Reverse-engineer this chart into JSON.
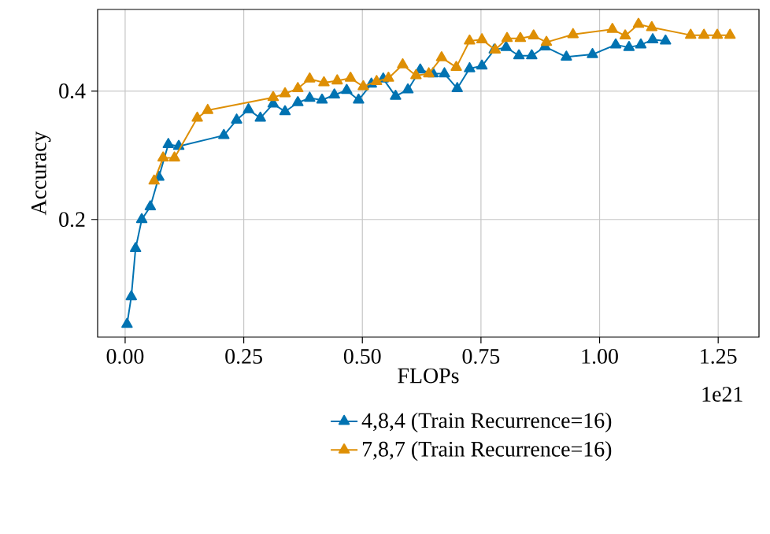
{
  "chart_data": {
    "type": "line",
    "xlabel": "FLOPs",
    "ylabel": "Accuracy",
    "annotations": [
      "1e21"
    ],
    "xlim": [
      -0.058,
      1.336
    ],
    "ylim": [
      0.017,
      0.527
    ],
    "xticks": [
      {
        "value": 0,
        "label": "0.00"
      },
      {
        "value": 0.25,
        "label": "0.25"
      },
      {
        "value": 0.5,
        "label": "0.50"
      },
      {
        "value": 0.75,
        "label": "0.75"
      },
      {
        "value": 1.0,
        "label": "1.00"
      },
      {
        "value": 1.25,
        "label": "1.25"
      }
    ],
    "yticks": [
      0.2,
      0.4
    ],
    "grid": true,
    "legend": "bottom",
    "marker": "triangle",
    "line_style": "solid",
    "series": [
      {
        "name": "4,8,4 (Train Recurrence=16)",
        "color": "#0173b2",
        "x": [
          0.004,
          0.013,
          0.022,
          0.035,
          0.053,
          0.071,
          0.091,
          0.113,
          0.208,
          0.235,
          0.26,
          0.285,
          0.312,
          0.337,
          0.364,
          0.389,
          0.415,
          0.441,
          0.467,
          0.492,
          0.519,
          0.544,
          0.57,
          0.596,
          0.622,
          0.649,
          0.673,
          0.7,
          0.726,
          0.752,
          0.778,
          0.803,
          0.83,
          0.857,
          0.885,
          0.93,
          0.985,
          1.034,
          1.062,
          1.087,
          1.112,
          1.139
        ],
        "values": [
          0.037,
          0.08,
          0.155,
          0.2,
          0.22,
          0.266,
          0.317,
          0.314,
          0.331,
          0.355,
          0.371,
          0.358,
          0.38,
          0.368,
          0.382,
          0.389,
          0.386,
          0.394,
          0.401,
          0.386,
          0.411,
          0.419,
          0.392,
          0.402,
          0.433,
          0.427,
          0.427,
          0.404,
          0.435,
          0.439,
          0.464,
          0.468,
          0.455,
          0.455,
          0.469,
          0.453,
          0.457,
          0.472,
          0.468,
          0.472,
          0.48,
          0.478
        ]
      },
      {
        "name": "7,8,7 (Train Recurrence=16)",
        "color": "#de8f05",
        "x": [
          0.061,
          0.08,
          0.104,
          0.152,
          0.174,
          0.312,
          0.337,
          0.364,
          0.389,
          0.419,
          0.447,
          0.475,
          0.502,
          0.53,
          0.555,
          0.585,
          0.613,
          0.64,
          0.667,
          0.698,
          0.726,
          0.752,
          0.78,
          0.805,
          0.833,
          0.861,
          0.888,
          0.944,
          1.027,
          1.054,
          1.082,
          1.11,
          1.192,
          1.22,
          1.248,
          1.275
        ],
        "values": [
          0.26,
          0.296,
          0.296,
          0.358,
          0.37,
          0.39,
          0.396,
          0.404,
          0.419,
          0.413,
          0.416,
          0.42,
          0.407,
          0.415,
          0.42,
          0.441,
          0.424,
          0.427,
          0.452,
          0.437,
          0.478,
          0.48,
          0.464,
          0.482,
          0.482,
          0.486,
          0.476,
          0.488,
          0.496,
          0.486,
          0.504,
          0.499,
          0.487,
          0.487,
          0.487,
          0.487
        ]
      }
    ]
  }
}
